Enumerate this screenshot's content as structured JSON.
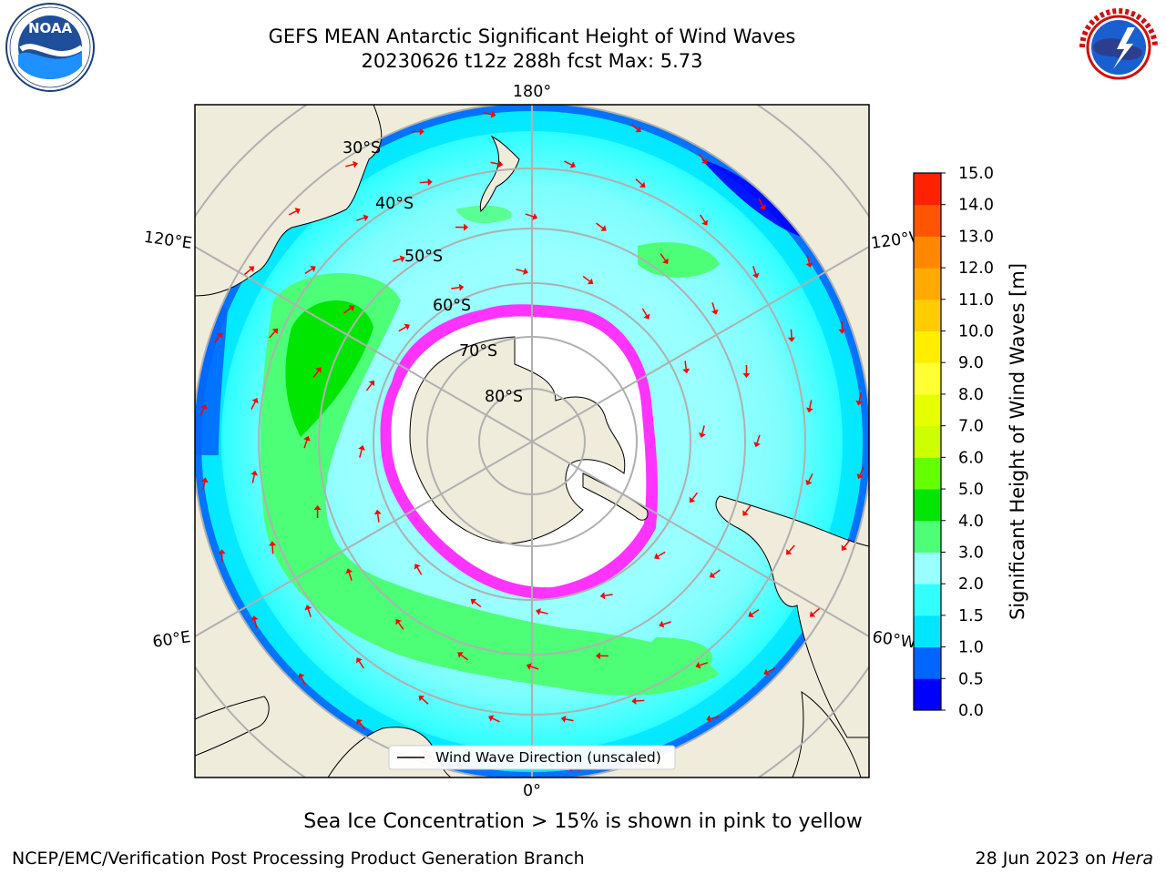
{
  "title": {
    "line1": "GEFS MEAN Antarctic Significant Height of Wind Waves",
    "line2": "20230626 t12z 288h fcst   Max: 5.73"
  },
  "logos": {
    "left": {
      "icon": "noaa-logo",
      "text": "NOAA",
      "ring_text": "NATIONAL OCEANIC AND ATMOSPHERIC ADMINISTRATION · U.S. DEPARTMENT OF COMMERCE"
    },
    "right": {
      "icon": "nws-logo",
      "ring_text": "NATIONAL WEATHER SERVICE"
    }
  },
  "map": {
    "projection": "south-polar-stereographic",
    "longitude_labels": [
      "180°",
      "120°E",
      "120°W",
      "60°E",
      "60°W",
      "0°"
    ],
    "latitude_labels": [
      "30°S",
      "40°S",
      "50°S",
      "60°S",
      "70°S",
      "80°S"
    ],
    "legend_label": "Wind Wave Direction (unscaled)",
    "colors": {
      "land": "#efecdc",
      "ocean_bg": "#7dfdfd",
      "sea_ice": "#ff33ff",
      "ice_inner": "#ffffff",
      "arrow": "#ff0000",
      "grid": "#b0b0b0"
    }
  },
  "colorbar": {
    "label": "Significant Height of Wind Waves [m]",
    "ticks": [
      "0.0",
      "0.5",
      "1.0",
      "1.5",
      "2.0",
      "3.0",
      "4.0",
      "5.0",
      "6.0",
      "7.0",
      "8.0",
      "9.0",
      "10.0",
      "11.0",
      "12.0",
      "13.0",
      "14.0",
      "15.0"
    ],
    "colors": [
      "#0000ff",
      "#0066ff",
      "#00e6ff",
      "#33ffff",
      "#99ffff",
      "#4dff77",
      "#00e600",
      "#66ff00",
      "#ccff00",
      "#e6ff00",
      "#ffff33",
      "#ffee00",
      "#ffcc00",
      "#ffaa00",
      "#ff8800",
      "#ff5500",
      "#ff2200"
    ]
  },
  "note": "Sea Ice Concentration > 15% is shown in pink to yellow",
  "footer": {
    "left": "NCEP/EMC/Verification Post Processing Product Generation Branch",
    "right_prefix": "28 Jun 2023 on ",
    "right_host": "Hera"
  }
}
